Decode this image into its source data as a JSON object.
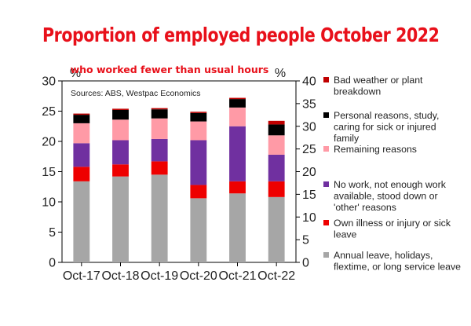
{
  "title": "Proportion of employed people October 2022",
  "chart_data": {
    "type": "bar",
    "stacked": true,
    "subtitle": "who worked fewer than usual hours",
    "source": "Sources: ABS, Westpac Economics",
    "left_axis_unit": "%",
    "right_axis_unit": "%",
    "ylim_left": [
      0,
      30
    ],
    "ylim_right": [
      0,
      40
    ],
    "yticks_left": [
      "0",
      "5",
      "10",
      "15",
      "20",
      "25",
      "30"
    ],
    "yticks_right": [
      "0",
      "5",
      "10",
      "15",
      "20",
      "25",
      "30",
      "35",
      "40"
    ],
    "categories": [
      "Oct-17",
      "Oct-18",
      "Oct-19",
      "Oct-20",
      "Oct-21",
      "Oct-22"
    ],
    "series": [
      {
        "name": "Annual leave, holidays, flextime, or long service leave",
        "color": "#a6a6a6",
        "values": [
          13.4,
          14.2,
          14.5,
          10.6,
          11.4,
          10.8
        ]
      },
      {
        "name": "Own illness or injury or sick leave",
        "color": "#ee0000",
        "values": [
          2.4,
          2.0,
          2.2,
          2.2,
          2.0,
          2.6
        ]
      },
      {
        "name": "No work, not enough work available, stood down or 'other' reasons",
        "color": "#7030a0",
        "values": [
          3.9,
          4.0,
          3.7,
          7.4,
          9.1,
          4.4
        ]
      },
      {
        "name": "Remaining reasons",
        "color": "#ff9aa6",
        "values": [
          3.3,
          3.4,
          3.4,
          3.1,
          3.1,
          3.2
        ]
      },
      {
        "name": "Personal reasons, study, caring for sick or injured family",
        "color": "#000000",
        "values": [
          1.4,
          1.6,
          1.5,
          1.4,
          1.4,
          1.8
        ]
      },
      {
        "name": "Bad weather or plant breakdown",
        "color": "#c00000",
        "values": [
          0.2,
          0.2,
          0.2,
          0.2,
          0.2,
          0.6
        ]
      }
    ],
    "legend": [
      {
        "label": "Bad weather or plant breakdown",
        "color": "#c00000"
      },
      {
        "label": "Personal reasons, study, caring for sick or injured family",
        "color": "#000000"
      },
      {
        "label": "Remaining reasons",
        "color": "#ff9aa6"
      },
      {
        "label": "No work, not enough work available, stood down or 'other' reasons",
        "color": "#7030a0"
      },
      {
        "label": "Own illness or injury or sick leave",
        "color": "#ee0000"
      },
      {
        "label": "Annual leave, holidays, flextime, or long service leave",
        "color": "#a6a6a6"
      }
    ],
    "legend_placement": "right",
    "grid": false
  }
}
